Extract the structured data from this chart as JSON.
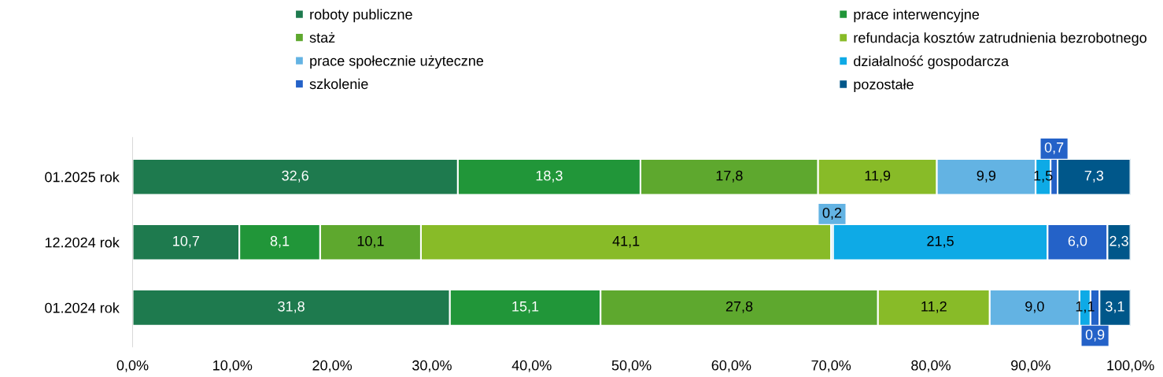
{
  "chart_data": {
    "type": "bar",
    "orientation": "horizontal",
    "stacked": true,
    "categories": [
      "01.2025 rok",
      "12.2024 rok",
      "01.2024 rok"
    ],
    "series": [
      {
        "name": "roboty publiczne",
        "color": "#1e7a4e",
        "values": [
          32.6,
          10.7,
          31.8
        ],
        "value_labels": [
          "32,6",
          "10,7",
          "31,8"
        ]
      },
      {
        "name": "prace interwencyjne",
        "color": "#219639",
        "values": [
          18.3,
          8.1,
          15.1
        ],
        "value_labels": [
          "18,3",
          "8,1",
          "15,1"
        ]
      },
      {
        "name": "staż",
        "color": "#5ea82e",
        "values": [
          17.8,
          10.1,
          27.8
        ],
        "value_labels": [
          "17,8",
          "10,1",
          "27,8"
        ]
      },
      {
        "name": "refundacja kosztów zatrudnienia bezrobotnego",
        "color": "#88bb28",
        "values": [
          11.9,
          41.1,
          11.2
        ],
        "value_labels": [
          "11,9",
          "41,1",
          "11,2"
        ]
      },
      {
        "name": "prace społecznie użyteczne",
        "color": "#63b3e3",
        "values": [
          9.9,
          0.2,
          9.0
        ],
        "value_labels": [
          "9,9",
          "0,2",
          "9,0"
        ]
      },
      {
        "name": "działalność gospodarcza",
        "color": "#0eaae6",
        "values": [
          1.5,
          21.5,
          1.1
        ],
        "value_labels": [
          "1,5",
          "21,5",
          "1,1"
        ]
      },
      {
        "name": "szkolenie",
        "color": "#2462c8",
        "values": [
          0.7,
          6.0,
          0.9
        ],
        "value_labels": [
          "0,7",
          "6,0",
          "0,9"
        ]
      },
      {
        "name": "pozostałe",
        "color": "#00578a",
        "values": [
          7.3,
          2.3,
          3.1
        ],
        "value_labels": [
          "7,3",
          "2,3",
          "3,1"
        ]
      }
    ],
    "xlim": [
      0,
      100
    ],
    "xticks": [
      {
        "value": 0,
        "label": "0,0%"
      },
      {
        "value": 10,
        "label": "10,0%"
      },
      {
        "value": 20,
        "label": "20,0%"
      },
      {
        "value": 30,
        "label": "30,0%"
      },
      {
        "value": 40,
        "label": "40,0%"
      },
      {
        "value": 50,
        "label": "50,0%"
      },
      {
        "value": 60,
        "label": "60,0%"
      },
      {
        "value": 70,
        "label": "70,0%"
      },
      {
        "value": 80,
        "label": "80,0%"
      },
      {
        "value": 90,
        "label": "90,0%"
      },
      {
        "value": 100,
        "label": "100,0%"
      }
    ],
    "legend": "top",
    "grid": false
  }
}
